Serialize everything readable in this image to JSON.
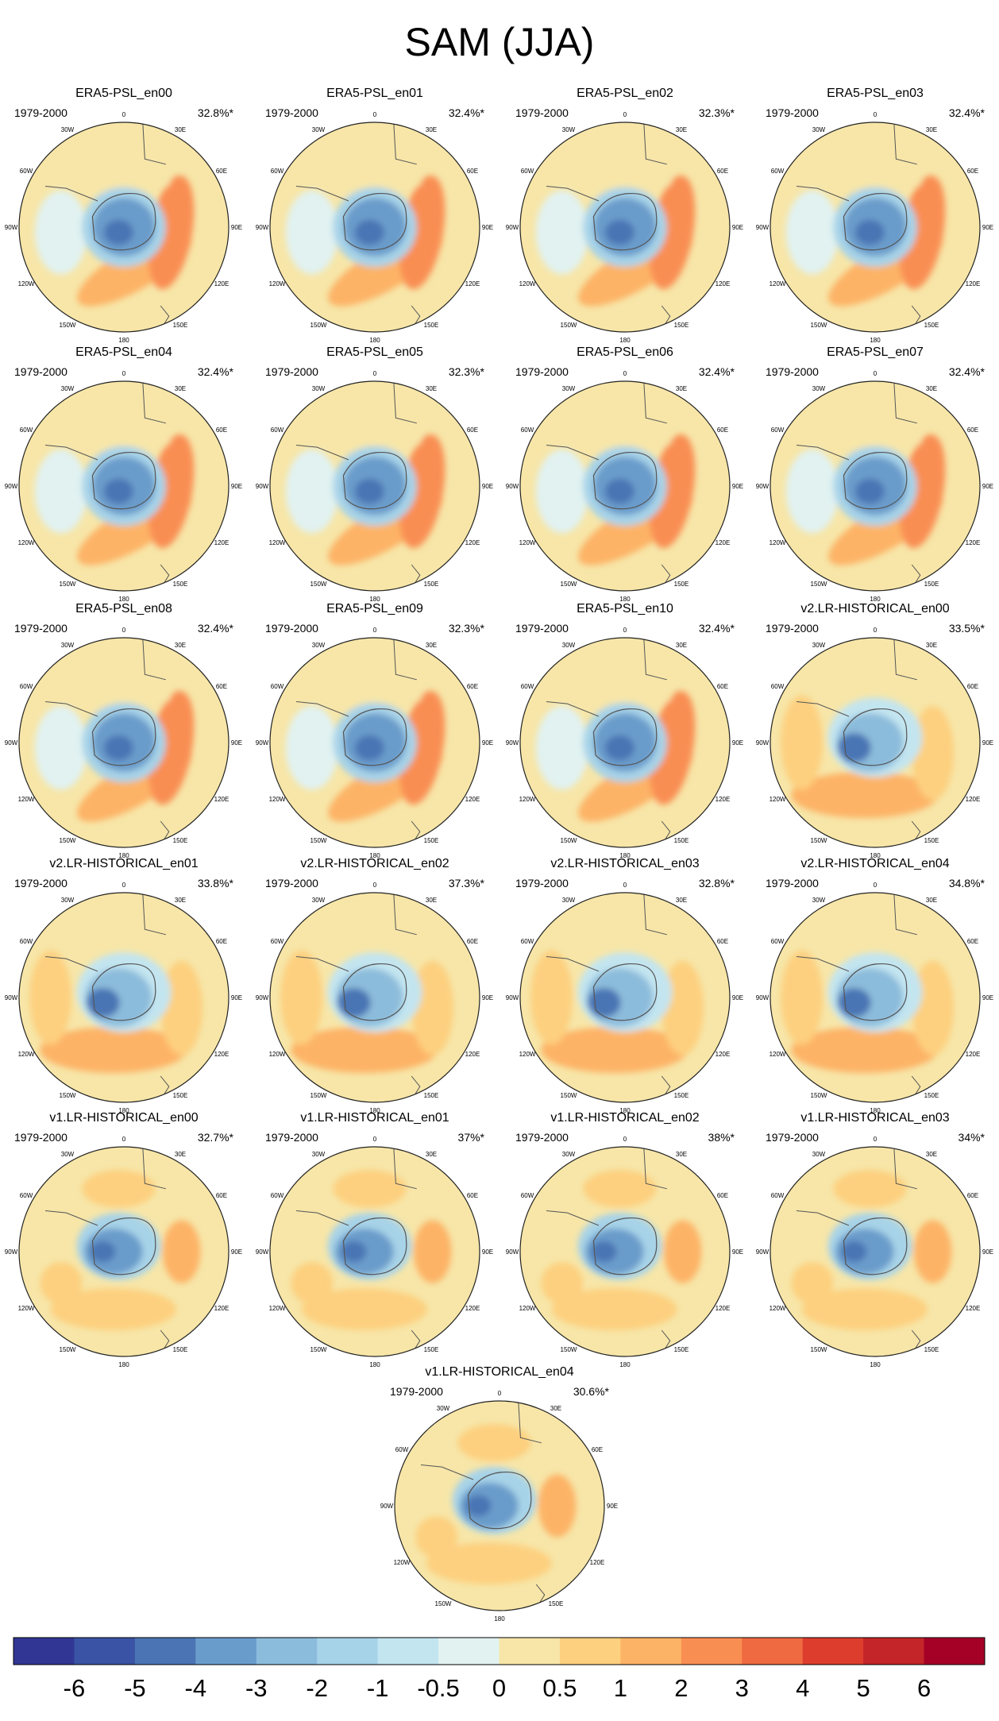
{
  "figure": {
    "title": "SAM (JJA)",
    "longitude_labels": [
      "0",
      "30E",
      "60E",
      "90E",
      "120E",
      "150E",
      "180",
      "150W",
      "120W",
      "90W",
      "60W",
      "30W"
    ],
    "panels": [
      {
        "title": "ERA5-PSL_en00",
        "period": "1979-2000",
        "explained_variance": "32.8%*",
        "family": "era5"
      },
      {
        "title": "ERA5-PSL_en01",
        "period": "1979-2000",
        "explained_variance": "32.4%*",
        "family": "era5"
      },
      {
        "title": "ERA5-PSL_en02",
        "period": "1979-2000",
        "explained_variance": "32.3%*",
        "family": "era5"
      },
      {
        "title": "ERA5-PSL_en03",
        "period": "1979-2000",
        "explained_variance": "32.4%*",
        "family": "era5"
      },
      {
        "title": "ERA5-PSL_en04",
        "period": "1979-2000",
        "explained_variance": "32.4%*",
        "family": "era5"
      },
      {
        "title": "ERA5-PSL_en05",
        "period": "1979-2000",
        "explained_variance": "32.3%*",
        "family": "era5"
      },
      {
        "title": "ERA5-PSL_en06",
        "period": "1979-2000",
        "explained_variance": "32.4%*",
        "family": "era5"
      },
      {
        "title": "ERA5-PSL_en07",
        "period": "1979-2000",
        "explained_variance": "32.4%*",
        "family": "era5"
      },
      {
        "title": "ERA5-PSL_en08",
        "period": "1979-2000",
        "explained_variance": "32.4%*",
        "family": "era5"
      },
      {
        "title": "ERA5-PSL_en09",
        "period": "1979-2000",
        "explained_variance": "32.3%*",
        "family": "era5"
      },
      {
        "title": "ERA5-PSL_en10",
        "period": "1979-2000",
        "explained_variance": "32.4%*",
        "family": "era5"
      },
      {
        "title": "v2.LR-HISTORICAL_en00",
        "period": "1979-2000",
        "explained_variance": "33.5%*",
        "family": "v2"
      },
      {
        "title": "v2.LR-HISTORICAL_en01",
        "period": "1979-2000",
        "explained_variance": "33.8%*",
        "family": "v2"
      },
      {
        "title": "v2.LR-HISTORICAL_en02",
        "period": "1979-2000",
        "explained_variance": "37.3%*",
        "family": "v2"
      },
      {
        "title": "v2.LR-HISTORICAL_en03",
        "period": "1979-2000",
        "explained_variance": "32.8%*",
        "family": "v2"
      },
      {
        "title": "v2.LR-HISTORICAL_en04",
        "period": "1979-2000",
        "explained_variance": "34.8%*",
        "family": "v2"
      },
      {
        "title": "v1.LR-HISTORICAL_en00",
        "period": "1979-2000",
        "explained_variance": "32.7%*",
        "family": "v1"
      },
      {
        "title": "v1.LR-HISTORICAL_en01",
        "period": "1979-2000",
        "explained_variance": "37%*",
        "family": "v1"
      },
      {
        "title": "v1.LR-HISTORICAL_en02",
        "period": "1979-2000",
        "explained_variance": "38%*",
        "family": "v1"
      },
      {
        "title": "v1.LR-HISTORICAL_en03",
        "period": "1979-2000",
        "explained_variance": "34%*",
        "family": "v1"
      },
      {
        "title": "v1.LR-HISTORICAL_en04",
        "period": "1979-2000",
        "explained_variance": "30.6%*",
        "family": "v1"
      }
    ]
  },
  "colorbar": {
    "labels": [
      "-6",
      "-5",
      "-4",
      "-3",
      "-2",
      "-1",
      "-0.5",
      "0",
      "0.5",
      "1",
      "2",
      "3",
      "4",
      "5",
      "6"
    ],
    "colors": [
      "#313695",
      "#3a53a4",
      "#4a74b4",
      "#6a9ccb",
      "#8cbcdb",
      "#a7d3e8",
      "#c3e5f0",
      "#e1f2f1",
      "#f7e6a8",
      "#fdd07f",
      "#fdb366",
      "#f98e52",
      "#ef6a40",
      "#dd3d2d",
      "#c32528",
      "#a50026"
    ]
  }
}
